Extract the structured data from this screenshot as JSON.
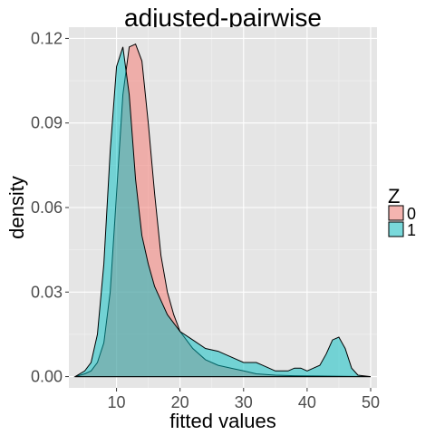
{
  "chart_data": {
    "type": "area",
    "title": "adjusted-pairwise",
    "xlabel": "fitted values",
    "ylabel": "density",
    "xlim": [
      2.5,
      51
    ],
    "ylim": [
      -0.004,
      0.124
    ],
    "x_ticks": [
      10,
      20,
      30,
      40,
      50
    ],
    "y_ticks": [
      0.0,
      0.03,
      0.06,
      0.09,
      0.12
    ],
    "x_tick_labels": [
      "10",
      "20",
      "30",
      "40",
      "50"
    ],
    "y_tick_labels": [
      "0.00",
      "0.03",
      "0.06",
      "0.09",
      "0.12"
    ],
    "grid": true,
    "legend": {
      "title": "Z",
      "placement": "right",
      "entries": [
        {
          "label": "0",
          "color": "#F8766D"
        },
        {
          "label": "1",
          "color": "#00BFC4"
        }
      ]
    },
    "series": [
      {
        "name": "0",
        "color": "#F8766D",
        "x": [
          3.5,
          5,
          6,
          7,
          8,
          9,
          10,
          11,
          12,
          13,
          14,
          15,
          16,
          17,
          18,
          19,
          20,
          22,
          24,
          26,
          28,
          30,
          32,
          35,
          38,
          42,
          46,
          50
        ],
        "y": [
          0.0,
          0.001,
          0.002,
          0.005,
          0.012,
          0.03,
          0.065,
          0.1,
          0.117,
          0.118,
          0.112,
          0.09,
          0.065,
          0.043,
          0.03,
          0.022,
          0.016,
          0.01,
          0.006,
          0.004,
          0.003,
          0.002,
          0.001,
          0.0005,
          0.0003,
          0.0002,
          0.0001,
          0.0
        ]
      },
      {
        "name": "1",
        "color": "#00BFC4",
        "x": [
          3.5,
          5,
          6,
          7,
          8,
          9,
          10,
          11,
          12,
          13,
          14,
          15,
          16,
          17,
          18,
          20,
          22,
          24,
          26,
          28,
          30,
          31,
          32,
          33,
          34,
          35,
          36,
          37,
          38,
          39,
          40,
          41,
          42,
          43,
          44,
          45,
          46,
          47,
          48,
          50
        ],
        "y": [
          0.0,
          0.002,
          0.005,
          0.015,
          0.04,
          0.08,
          0.11,
          0.117,
          0.1,
          0.07,
          0.05,
          0.04,
          0.032,
          0.027,
          0.022,
          0.016,
          0.013,
          0.01,
          0.009,
          0.007,
          0.005,
          0.005,
          0.005,
          0.004,
          0.003,
          0.002,
          0.002,
          0.002,
          0.003,
          0.003,
          0.002,
          0.003,
          0.004,
          0.008,
          0.013,
          0.014,
          0.01,
          0.003,
          0.0005,
          0.0
        ]
      }
    ]
  }
}
